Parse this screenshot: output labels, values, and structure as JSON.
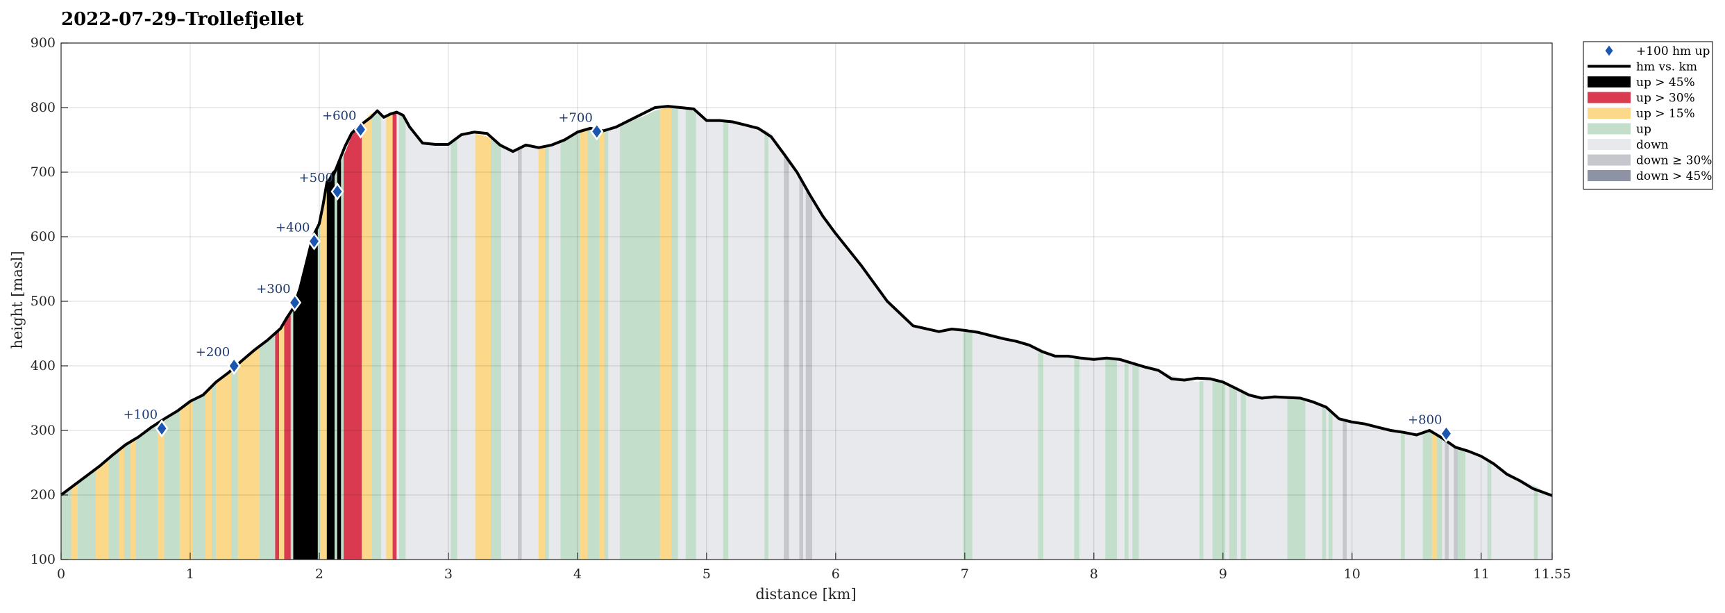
{
  "chart_data": {
    "type": "area",
    "title": "2022-07-29–Trollefjellet",
    "xlabel": "distance [km]",
    "ylabel": "height [masl]",
    "xlim": [
      0,
      11.55
    ],
    "ylim": [
      100,
      900
    ],
    "xticks": [
      "0",
      "1",
      "2",
      "3",
      "4",
      "5",
      "6",
      "7",
      "8",
      "9",
      "10",
      "11",
      "11.55"
    ],
    "xtick_values": [
      0,
      1,
      2,
      3,
      4,
      5,
      6,
      7,
      8,
      9,
      10,
      11,
      11.55
    ],
    "yticks": [
      "100",
      "200",
      "300",
      "400",
      "500",
      "600",
      "700",
      "800",
      "900"
    ],
    "ytick_values": [
      100,
      200,
      300,
      400,
      500,
      600,
      700,
      800,
      900
    ],
    "grid": true,
    "legend_position": "outside-top-right",
    "colors": {
      "up45": "#000000",
      "up30": "#d93a4f",
      "up15": "#fcd98a",
      "up": "#c3dfcb",
      "down": "#e8e9ec",
      "down30": "#c6c7cd",
      "down45": "#8d93a4",
      "line": "#000000",
      "marker": "#1a56b0",
      "marker_label": "#1f3a6e"
    },
    "legend": [
      {
        "key": "marker",
        "label": "+100 hm up"
      },
      {
        "key": "line",
        "label": "hm vs. km"
      },
      {
        "key": "up45",
        "label": "up > 45%"
      },
      {
        "key": "up30",
        "label": "up > 30%"
      },
      {
        "key": "up15",
        "label": "up > 15%"
      },
      {
        "key": "up",
        "label": "up"
      },
      {
        "key": "down",
        "label": "down"
      },
      {
        "key": "down30",
        "label": "down ≥ 30%"
      },
      {
        "key": "down45",
        "label": "down > 45%"
      }
    ],
    "profile": {
      "x": [
        0,
        0.1,
        0.2,
        0.3,
        0.4,
        0.5,
        0.6,
        0.7,
        0.8,
        0.9,
        1.0,
        1.05,
        1.1,
        1.2,
        1.3,
        1.4,
        1.5,
        1.6,
        1.7,
        1.75,
        1.8,
        1.85,
        1.9,
        1.95,
        2.0,
        2.03,
        2.06,
        2.1,
        2.15,
        2.2,
        2.25,
        2.3,
        2.4,
        2.45,
        2.5,
        2.55,
        2.6,
        2.65,
        2.7,
        2.8,
        2.9,
        3.0,
        3.1,
        3.2,
        3.3,
        3.4,
        3.5,
        3.6,
        3.7,
        3.8,
        3.9,
        4.0,
        4.1,
        4.2,
        4.3,
        4.4,
        4.5,
        4.6,
        4.7,
        4.8,
        4.9,
        5.0,
        5.1,
        5.2,
        5.3,
        5.4,
        5.5,
        5.6,
        5.7,
        5.8,
        5.9,
        6.0,
        6.2,
        6.4,
        6.6,
        6.8,
        6.9,
        7.0,
        7.1,
        7.2,
        7.3,
        7.4,
        7.5,
        7.6,
        7.7,
        7.8,
        7.9,
        8.0,
        8.1,
        8.2,
        8.3,
        8.4,
        8.5,
        8.6,
        8.7,
        8.8,
        8.9,
        9.0,
        9.1,
        9.2,
        9.3,
        9.4,
        9.5,
        9.6,
        9.7,
        9.8,
        9.9,
        10.0,
        10.1,
        10.2,
        10.3,
        10.4,
        10.5,
        10.6,
        10.7,
        10.8,
        10.9,
        11.0,
        11.1,
        11.2,
        11.3,
        11.4,
        11.55
      ],
      "y": [
        200,
        215,
        230,
        245,
        262,
        278,
        290,
        305,
        318,
        330,
        345,
        350,
        355,
        375,
        390,
        408,
        425,
        440,
        458,
        475,
        490,
        520,
        560,
        600,
        620,
        650,
        685,
        700,
        710,
        730,
        755,
        770,
        790,
        793,
        780,
        790,
        792,
        785,
        770,
        745,
        740,
        740,
        755,
        760,
        755,
        740,
        730,
        740,
        735,
        740,
        750,
        765,
        770,
        765,
        770,
        780,
        785,
        795,
        800,
        800,
        795,
        780,
        780,
        780,
        775,
        770,
        760,
        730,
        700,
        660,
        630,
        600,
        550,
        500,
        460,
        450,
        455,
        455,
        453,
        450,
        445,
        440,
        435,
        425,
        418,
        415,
        413,
        410,
        410,
        408,
        405,
        400,
        395,
        385,
        378,
        375,
        378,
        375,
        368,
        358,
        352,
        350,
        352,
        350,
        345,
        338,
        320,
        315,
        310,
        305,
        300,
        298,
        295,
        300,
        290,
        275,
        270,
        262,
        250,
        235,
        225,
        215,
        200
      ],
      "line_y": [
        200,
        215,
        230,
        245,
        262,
        278,
        290,
        305,
        318,
        330,
        345,
        350,
        355,
        375,
        390,
        408,
        425,
        440,
        458,
        475,
        490,
        520,
        560,
        600,
        620,
        650,
        685,
        690,
        715,
        740,
        760,
        770,
        785,
        795,
        785,
        790,
        793,
        788,
        770,
        745,
        743,
        743,
        758,
        762,
        760,
        742,
        732,
        742,
        738,
        742,
        750,
        762,
        768,
        764,
        770,
        780,
        790,
        800,
        802,
        800,
        798,
        780,
        780,
        778,
        773,
        768,
        755,
        728,
        700,
        665,
        632,
        605,
        555,
        500,
        462,
        453,
        457,
        455,
        452,
        447,
        442,
        438,
        432,
        422,
        415,
        415,
        412,
        410,
        412,
        410,
        404,
        398,
        393,
        380,
        378,
        381,
        380,
        375,
        365,
        355,
        350,
        352,
        351,
        350,
        344,
        336,
        318,
        313,
        310,
        305,
        300,
        297,
        293,
        300,
        288,
        274,
        268,
        260,
        248,
        232,
        222,
        210,
        199
      ]
    },
    "segments": [
      {
        "c": "up",
        "x0": 0.0,
        "x1": 0.08
      },
      {
        "c": "up15",
        "x0": 0.08,
        "x1": 0.13
      },
      {
        "c": "up",
        "x0": 0.13,
        "x1": 0.27
      },
      {
        "c": "up15",
        "x0": 0.27,
        "x1": 0.37
      },
      {
        "c": "up",
        "x0": 0.37,
        "x1": 0.45
      },
      {
        "c": "up15",
        "x0": 0.45,
        "x1": 0.49
      },
      {
        "c": "up",
        "x0": 0.49,
        "x1": 0.54
      },
      {
        "c": "up15",
        "x0": 0.54,
        "x1": 0.58
      },
      {
        "c": "up",
        "x0": 0.58,
        "x1": 0.75
      },
      {
        "c": "up15",
        "x0": 0.75,
        "x1": 0.8
      },
      {
        "c": "up",
        "x0": 0.8,
        "x1": 0.92
      },
      {
        "c": "up15",
        "x0": 0.92,
        "x1": 1.02
      },
      {
        "c": "up",
        "x0": 1.02,
        "x1": 1.12
      },
      {
        "c": "up15",
        "x0": 1.12,
        "x1": 1.17
      },
      {
        "c": "up",
        "x0": 1.17,
        "x1": 1.2
      },
      {
        "c": "up15",
        "x0": 1.2,
        "x1": 1.32
      },
      {
        "c": "up",
        "x0": 1.32,
        "x1": 1.37
      },
      {
        "c": "up15",
        "x0": 1.37,
        "x1": 1.54
      },
      {
        "c": "up",
        "x0": 1.54,
        "x1": 1.66
      },
      {
        "c": "up30",
        "x0": 1.66,
        "x1": 1.69
      },
      {
        "c": "up15",
        "x0": 1.69,
        "x1": 1.73
      },
      {
        "c": "up30",
        "x0": 1.73,
        "x1": 1.78
      },
      {
        "c": "up",
        "x0": 1.78,
        "x1": 1.8
      },
      {
        "c": "up45",
        "x0": 1.8,
        "x1": 1.99
      },
      {
        "c": "up",
        "x0": 1.99,
        "x1": 2.01
      },
      {
        "c": "up15",
        "x0": 2.01,
        "x1": 2.06
      },
      {
        "c": "up45",
        "x0": 2.06,
        "x1": 2.12
      },
      {
        "c": "up",
        "x0": 2.12,
        "x1": 2.14
      },
      {
        "c": "up45",
        "x0": 2.14,
        "x1": 2.17
      },
      {
        "c": "up",
        "x0": 2.17,
        "x1": 2.19
      },
      {
        "c": "up30",
        "x0": 2.19,
        "x1": 2.33
      },
      {
        "c": "up15",
        "x0": 2.33,
        "x1": 2.41
      },
      {
        "c": "up",
        "x0": 2.41,
        "x1": 2.48
      },
      {
        "c": "down",
        "x0": 2.48,
        "x1": 2.52
      },
      {
        "c": "up15",
        "x0": 2.52,
        "x1": 2.57
      },
      {
        "c": "up30",
        "x0": 2.57,
        "x1": 2.6
      },
      {
        "c": "down",
        "x0": 2.6,
        "x1": 2.62
      },
      {
        "c": "up",
        "x0": 2.62,
        "x1": 2.67
      },
      {
        "c": "down",
        "x0": 2.67,
        "x1": 3.02
      },
      {
        "c": "up",
        "x0": 3.02,
        "x1": 3.07
      },
      {
        "c": "down",
        "x0": 3.07,
        "x1": 3.21
      },
      {
        "c": "up15",
        "x0": 3.21,
        "x1": 3.33
      },
      {
        "c": "up",
        "x0": 3.33,
        "x1": 3.41
      },
      {
        "c": "down",
        "x0": 3.41,
        "x1": 3.54
      },
      {
        "c": "down30",
        "x0": 3.54,
        "x1": 3.57
      },
      {
        "c": "down",
        "x0": 3.57,
        "x1": 3.7
      },
      {
        "c": "up15",
        "x0": 3.7,
        "x1": 3.75
      },
      {
        "c": "up",
        "x0": 3.75,
        "x1": 3.78
      },
      {
        "c": "down",
        "x0": 3.78,
        "x1": 3.87
      },
      {
        "c": "up",
        "x0": 3.87,
        "x1": 4.02
      },
      {
        "c": "up15",
        "x0": 4.02,
        "x1": 4.08
      },
      {
        "c": "up",
        "x0": 4.08,
        "x1": 4.17
      },
      {
        "c": "up15",
        "x0": 4.17,
        "x1": 4.21
      },
      {
        "c": "up",
        "x0": 4.21,
        "x1": 4.24
      },
      {
        "c": "down",
        "x0": 4.24,
        "x1": 4.33
      },
      {
        "c": "up",
        "x0": 4.33,
        "x1": 4.64
      },
      {
        "c": "up15",
        "x0": 4.64,
        "x1": 4.73
      },
      {
        "c": "up",
        "x0": 4.73,
        "x1": 4.78
      },
      {
        "c": "down",
        "x0": 4.78,
        "x1": 4.84
      },
      {
        "c": "up",
        "x0": 4.84,
        "x1": 4.92
      },
      {
        "c": "down",
        "x0": 4.92,
        "x1": 5.13
      },
      {
        "c": "up",
        "x0": 5.13,
        "x1": 5.17
      },
      {
        "c": "down",
        "x0": 5.17,
        "x1": 5.45
      },
      {
        "c": "up",
        "x0": 5.45,
        "x1": 5.48
      },
      {
        "c": "down",
        "x0": 5.48,
        "x1": 5.6
      },
      {
        "c": "down30",
        "x0": 5.6,
        "x1": 5.64
      },
      {
        "c": "down",
        "x0": 5.64,
        "x1": 5.72
      },
      {
        "c": "down30",
        "x0": 5.72,
        "x1": 5.75
      },
      {
        "c": "down",
        "x0": 5.75,
        "x1": 5.77
      },
      {
        "c": "down30",
        "x0": 5.77,
        "x1": 5.82
      },
      {
        "c": "down",
        "x0": 5.82,
        "x1": 6.99
      },
      {
        "c": "up",
        "x0": 6.99,
        "x1": 7.06
      },
      {
        "c": "down",
        "x0": 7.06,
        "x1": 7.57
      },
      {
        "c": "up",
        "x0": 7.57,
        "x1": 7.61
      },
      {
        "c": "down",
        "x0": 7.61,
        "x1": 7.85
      },
      {
        "c": "up",
        "x0": 7.85,
        "x1": 7.89
      },
      {
        "c": "down",
        "x0": 7.89,
        "x1": 8.09
      },
      {
        "c": "up",
        "x0": 8.09,
        "x1": 8.18
      },
      {
        "c": "down",
        "x0": 8.18,
        "x1": 8.24
      },
      {
        "c": "up",
        "x0": 8.24,
        "x1": 8.27
      },
      {
        "c": "down",
        "x0": 8.27,
        "x1": 8.3
      },
      {
        "c": "up",
        "x0": 8.3,
        "x1": 8.35
      },
      {
        "c": "down",
        "x0": 8.35,
        "x1": 8.82
      },
      {
        "c": "up",
        "x0": 8.82,
        "x1": 8.85
      },
      {
        "c": "down",
        "x0": 8.85,
        "x1": 8.92
      },
      {
        "c": "up",
        "x0": 8.92,
        "x1": 9.02
      },
      {
        "c": "down",
        "x0": 9.02,
        "x1": 9.05
      },
      {
        "c": "up",
        "x0": 9.05,
        "x1": 9.11
      },
      {
        "c": "down",
        "x0": 9.11,
        "x1": 9.14
      },
      {
        "c": "up",
        "x0": 9.14,
        "x1": 9.18
      },
      {
        "c": "down",
        "x0": 9.18,
        "x1": 9.5
      },
      {
        "c": "up",
        "x0": 9.5,
        "x1": 9.64
      },
      {
        "c": "down",
        "x0": 9.64,
        "x1": 9.77
      },
      {
        "c": "up",
        "x0": 9.77,
        "x1": 9.8
      },
      {
        "c": "down",
        "x0": 9.8,
        "x1": 9.82
      },
      {
        "c": "up",
        "x0": 9.82,
        "x1": 9.85
      },
      {
        "c": "down",
        "x0": 9.85,
        "x1": 9.93
      },
      {
        "c": "down30",
        "x0": 9.93,
        "x1": 9.96
      },
      {
        "c": "down",
        "x0": 9.96,
        "x1": 10.38
      },
      {
        "c": "up",
        "x0": 10.38,
        "x1": 10.41
      },
      {
        "c": "down",
        "x0": 10.41,
        "x1": 10.55
      },
      {
        "c": "up",
        "x0": 10.55,
        "x1": 10.62
      },
      {
        "c": "up15",
        "x0": 10.62,
        "x1": 10.66
      },
      {
        "c": "up",
        "x0": 10.66,
        "x1": 10.7
      },
      {
        "c": "down",
        "x0": 10.7,
        "x1": 10.72
      },
      {
        "c": "down30",
        "x0": 10.72,
        "x1": 10.75
      },
      {
        "c": "down",
        "x0": 10.75,
        "x1": 10.79
      },
      {
        "c": "down30",
        "x0": 10.79,
        "x1": 10.82
      },
      {
        "c": "up",
        "x0": 10.82,
        "x1": 10.88
      },
      {
        "c": "down",
        "x0": 10.88,
        "x1": 11.05
      },
      {
        "c": "up",
        "x0": 11.05,
        "x1": 11.08
      },
      {
        "c": "down",
        "x0": 11.08,
        "x1": 11.41
      },
      {
        "c": "up",
        "x0": 11.41,
        "x1": 11.44
      },
      {
        "c": "down",
        "x0": 11.44,
        "x1": 11.55
      }
    ],
    "markers": [
      {
        "label": "+100",
        "x": 0.78,
        "y": 303
      },
      {
        "label": "+200",
        "x": 1.34,
        "y": 400
      },
      {
        "label": "+300",
        "x": 1.81,
        "y": 498
      },
      {
        "label": "+400",
        "x": 1.96,
        "y": 593
      },
      {
        "label": "+500",
        "x": 2.14,
        "y": 670
      },
      {
        "label": "+600",
        "x": 2.32,
        "y": 766
      },
      {
        "label": "+700",
        "x": 4.15,
        "y": 763
      },
      {
        "label": "+800",
        "x": 10.73,
        "y": 295
      }
    ]
  }
}
